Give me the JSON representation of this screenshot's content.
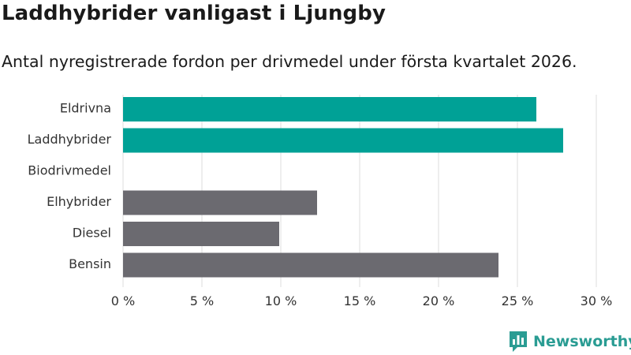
{
  "title": "Laddhybrider vanligast i Ljungby",
  "subtitle": "Antal nyregistrerade fordon per drivmedel under första kvartalet 2026.",
  "brand": {
    "name": "Newsworthy",
    "icon": "newsworthy-logo-icon"
  },
  "colors": {
    "highlight": "#00a196",
    "default": "#6b6a70",
    "grid": "#dddddd"
  },
  "chart_data": {
    "type": "bar",
    "orientation": "horizontal",
    "title": "Laddhybrider vanligast i Ljungby",
    "subtitle": "Antal nyregistrerade fordon per drivmedel under första kvartalet 2026.",
    "categories": [
      "Eldrivna",
      "Laddhybrider",
      "Biodrivmedel",
      "Elhybrider",
      "Diesel",
      "Bensin"
    ],
    "values": [
      26.2,
      27.9,
      0,
      12.3,
      9.9,
      23.8
    ],
    "highlighted": [
      true,
      true,
      false,
      false,
      false,
      false
    ],
    "unit": "%",
    "xlim": [
      0,
      30
    ],
    "xticks": [
      0,
      5,
      10,
      15,
      20,
      25,
      30
    ],
    "xtick_labels": [
      "0 %",
      "5 %",
      "10 %",
      "15 %",
      "20 %",
      "25 %",
      "30 %"
    ],
    "xlabel": "",
    "ylabel": "",
    "grid": true,
    "legend": "none"
  }
}
